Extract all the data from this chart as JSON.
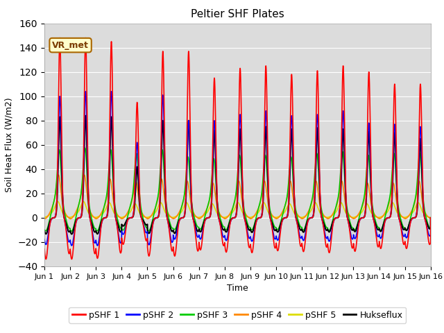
{
  "title": "Peltier SHF Plates",
  "xlabel": "Time",
  "ylabel": "Soil Heat Flux (W/m2)",
  "xlim": [
    0,
    15
  ],
  "ylim": [
    -40,
    160
  ],
  "yticks": [
    -40,
    -20,
    0,
    20,
    40,
    60,
    80,
    100,
    120,
    140,
    160
  ],
  "xtick_labels": [
    "Jun 1",
    "Jun 2",
    "Jun 3",
    "Jun 4",
    "Jun 5",
    "Jun 6",
    "Jun 7",
    "Jun 8",
    "Jun 9",
    "Jun 10",
    "Jun 11",
    "Jun 12",
    "Jun 13",
    "Jun 14",
    "Jun 15",
    "Jun 16"
  ],
  "annotation_text": "VR_met",
  "background_color": "#dcdcdc",
  "series": {
    "pSHF1": {
      "color": "#ff0000",
      "lw": 1.2,
      "label": "pSHF 1"
    },
    "pSHF2": {
      "color": "#0000ff",
      "lw": 1.2,
      "label": "pSHF 2"
    },
    "pSHF3": {
      "color": "#00cc00",
      "lw": 1.2,
      "label": "pSHF 3"
    },
    "pSHF4": {
      "color": "#ff8800",
      "lw": 1.2,
      "label": "pSHF 4"
    },
    "pSHF5": {
      "color": "#dddd00",
      "lw": 1.2,
      "label": "pSHF 5"
    },
    "Hukseflux": {
      "color": "#000000",
      "lw": 1.5,
      "label": "Hukseflux"
    }
  }
}
